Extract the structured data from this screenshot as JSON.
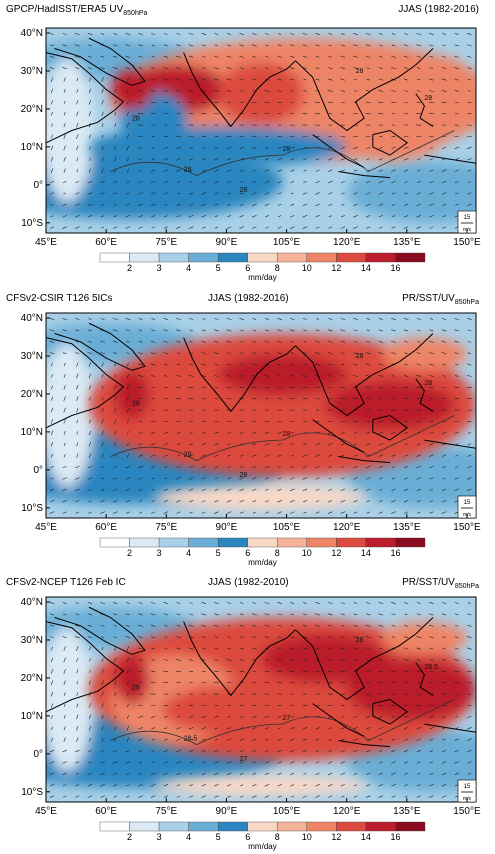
{
  "panels": [
    {
      "title_left": "GPCP/HadISST/ERA5 UV",
      "title_left_sub": "850hPa",
      "title_center": "",
      "title_right": "JJAS (1982-2016)",
      "title_right_sub": "",
      "contour_labels": [
        "28",
        "28",
        "28",
        "28",
        "28",
        "28"
      ]
    },
    {
      "title_left": "CFSv2-CSIR T126 5ICs",
      "title_left_sub": "",
      "title_center": "JJAS (1982-2016)",
      "title_right": "PR/SST/UV",
      "title_right_sub": "850hPa",
      "contour_labels": [
        "28",
        "29",
        "28",
        "28",
        "28",
        "28"
      ]
    },
    {
      "title_left": "CFSv2-NCEP T126 Feb IC",
      "title_left_sub": "",
      "title_center": "JJAS (1982-2010)",
      "title_right": "PR/SST/UV",
      "title_right_sub": "850hPa",
      "contour_labels": [
        "28",
        "28.5",
        "27",
        "28",
        "28.5",
        "27"
      ]
    }
  ],
  "axes": {
    "lat_labels": [
      "40°N",
      "30°N",
      "20°N",
      "10°N",
      "0°",
      "10°S"
    ],
    "lon_labels": [
      "45°E",
      "60°E",
      "75°E",
      "90°E",
      "105°E",
      "120°E",
      "135°E",
      "150°E"
    ]
  },
  "colorbar": {
    "levels": [
      "2",
      "3",
      "4",
      "5",
      "6",
      "8",
      "10",
      "12",
      "14",
      "16"
    ],
    "units": "mm/day",
    "colors": [
      "#ffffff",
      "#dbeaf4",
      "#a9d0e8",
      "#6aaed6",
      "#2a86c0",
      "#f9d8c6",
      "#f5b49a",
      "#ee8466",
      "#dc4a3e",
      "#bb1d2b",
      "#8a0a1f"
    ]
  },
  "reference_vector": {
    "value": "15",
    "units": "m/s"
  },
  "colors": {
    "land_outline": "#000000",
    "contour": "#333333"
  }
}
